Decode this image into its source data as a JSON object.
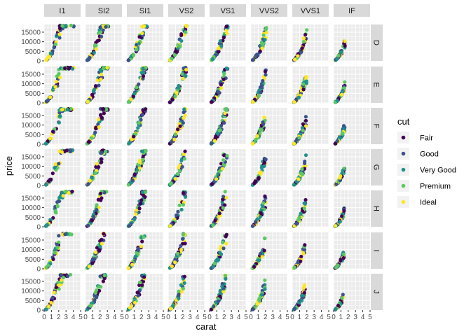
{
  "chart_data": {
    "type": "scatter",
    "facet_columns": [
      "I1",
      "SI2",
      "SI1",
      "VS2",
      "VS1",
      "VVS2",
      "VVS1",
      "IF"
    ],
    "facet_rows": [
      "D",
      "E",
      "F",
      "G",
      "H",
      "I",
      "J"
    ],
    "xlabel": "carat",
    "ylabel": "price",
    "xlim": [
      0,
      5
    ],
    "ylim": [
      0,
      19000
    ],
    "x_ticks": [
      0,
      1,
      2,
      3,
      4,
      5
    ],
    "y_ticks": [
      0,
      5000,
      10000,
      15000
    ],
    "y_tick_labels": [
      "0",
      "5000",
      "10000",
      "15000"
    ],
    "grid": true,
    "legend": {
      "title": "cut",
      "position": "right",
      "entries": [
        "Fair",
        "Good",
        "Very Good",
        "Premium",
        "Ideal"
      ]
    },
    "colors": {
      "Fair": "#440154",
      "Good": "#3b528b",
      "Very Good": "#21908c",
      "Premium": "#5dc863",
      "Ideal": "#fde725"
    },
    "max_carat_by_clarity": [
      4.2,
      3.2,
      2.8,
      2.6,
      2.6,
      2.2,
      2.0,
      1.6
    ]
  }
}
